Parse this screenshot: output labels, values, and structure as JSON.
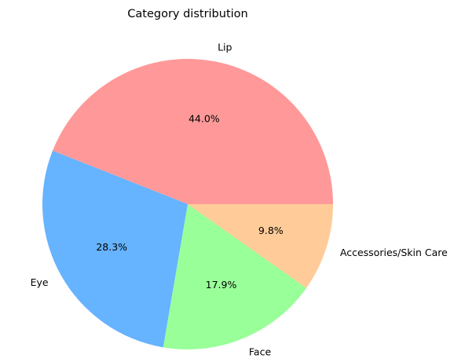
{
  "chart_data": {
    "type": "pie",
    "title": "Category distribution",
    "categories": [
      "Lip",
      "Eye",
      "Face",
      "Accessories/Skin Care"
    ],
    "values": [
      44.0,
      28.3,
      17.9,
      9.8
    ],
    "percent_labels": [
      "44.0%",
      "28.3%",
      "17.9%",
      "9.8%"
    ],
    "colors": [
      "#ff9999",
      "#66b3ff",
      "#99ff99",
      "#ffcc99"
    ],
    "start_angle_deg": 0,
    "direction": "counterclockwise",
    "legend": "none"
  }
}
